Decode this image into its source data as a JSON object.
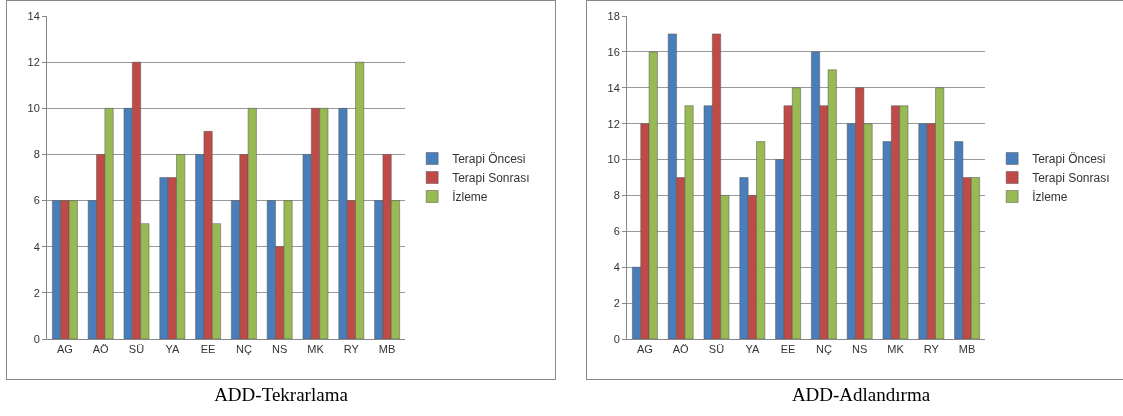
{
  "chart_data": [
    {
      "type": "bar",
      "title": "ADD-Tekrarlama",
      "categories": [
        "AG",
        "AÖ",
        "SÜ",
        "YA",
        "EE",
        "NÇ",
        "NS",
        "MK",
        "RY",
        "MB"
      ],
      "series": [
        {
          "name": "Terapi Öncesi",
          "color": "#4a7ebb",
          "values": [
            6,
            6,
            10,
            7,
            8,
            6,
            6,
            8,
            10,
            6
          ]
        },
        {
          "name": "Terapi Sonrası",
          "color": "#be4b48",
          "values": [
            6,
            8,
            12,
            7,
            9,
            8,
            4,
            10,
            6,
            8
          ]
        },
        {
          "name": "İzleme",
          "color": "#98b954",
          "values": [
            6,
            10,
            5,
            8,
            5,
            10,
            6,
            10,
            12,
            6
          ]
        }
      ],
      "ylim": [
        0,
        14
      ],
      "yticks": [
        0,
        2,
        4,
        6,
        8,
        10,
        12,
        14
      ],
      "grid": "y",
      "legend": "right"
    },
    {
      "type": "bar",
      "title": "ADD-Adlandırma",
      "categories": [
        "AG",
        "AÖ",
        "SÜ",
        "YA",
        "EE",
        "NÇ",
        "NS",
        "MK",
        "RY",
        "MB"
      ],
      "series": [
        {
          "name": "Terapi Öncesi",
          "color": "#4a7ebb",
          "values": [
            4,
            17,
            13,
            9,
            10,
            16,
            12,
            11,
            12,
            11
          ]
        },
        {
          "name": "Terapi Sonrası",
          "color": "#be4b48",
          "values": [
            12,
            9,
            17,
            8,
            13,
            13,
            14,
            13,
            12,
            9
          ]
        },
        {
          "name": "İzleme",
          "color": "#98b954",
          "values": [
            16,
            13,
            8,
            11,
            14,
            15,
            12,
            13,
            14,
            9
          ]
        }
      ],
      "ylim": [
        0,
        18
      ],
      "yticks": [
        0,
        2,
        4,
        6,
        8,
        10,
        12,
        14,
        16,
        18
      ],
      "grid": "y",
      "legend": "right"
    }
  ]
}
